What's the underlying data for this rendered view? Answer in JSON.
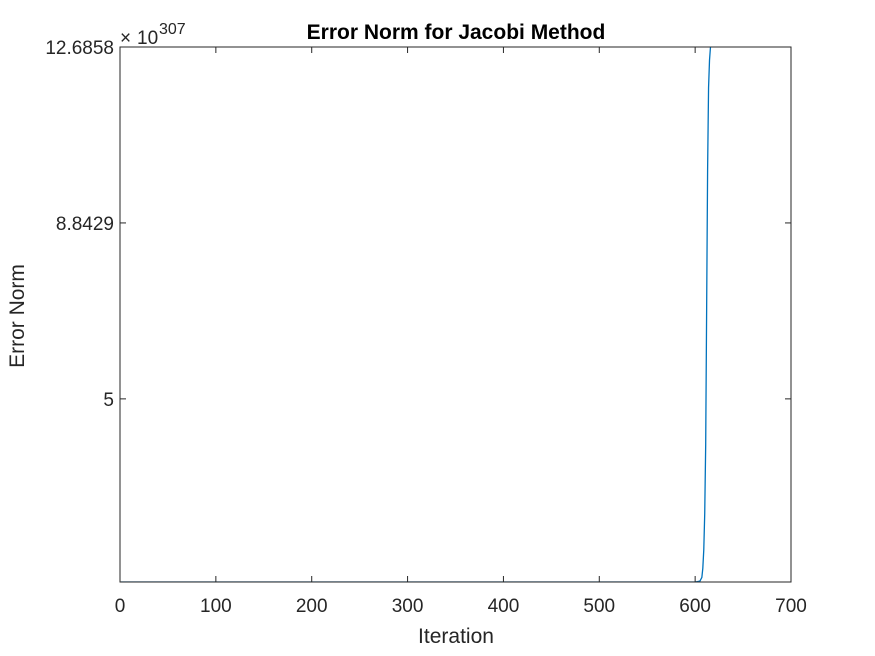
{
  "chart_data": {
    "type": "line",
    "title": "Error Norm for Jacobi Method",
    "xlabel": "Iteration",
    "ylabel": "Error Norm",
    "xlim": [
      0,
      700
    ],
    "ylim": [
      1,
      12.6858
    ],
    "y_exponent_base": "10",
    "y_exponent": "307",
    "y_scale": "×10^307",
    "grid": false,
    "x_ticks": [
      0,
      100,
      200,
      300,
      400,
      500,
      600,
      700
    ],
    "x_tick_labels": [
      "0",
      "100",
      "200",
      "300",
      "400",
      "500",
      "600",
      "700"
    ],
    "y_ticks": [
      5,
      8.8429,
      12.6858
    ],
    "y_tick_labels": [
      "5",
      "8.8429",
      "12.6858"
    ],
    "line_color": "#0072BD",
    "series": [
      {
        "x": [
          1,
          100,
          200,
          300,
          400,
          500,
          600,
          605,
          607,
          608,
          609,
          610,
          611,
          612,
          613,
          614,
          615,
          616
        ],
        "y": [
          1,
          1,
          1,
          1,
          1,
          1,
          1,
          1.02,
          1.1,
          1.3,
          1.7,
          2.5,
          4.0,
          7.0,
          10.0,
          11.8,
          12.4,
          12.6858
        ]
      }
    ]
  }
}
